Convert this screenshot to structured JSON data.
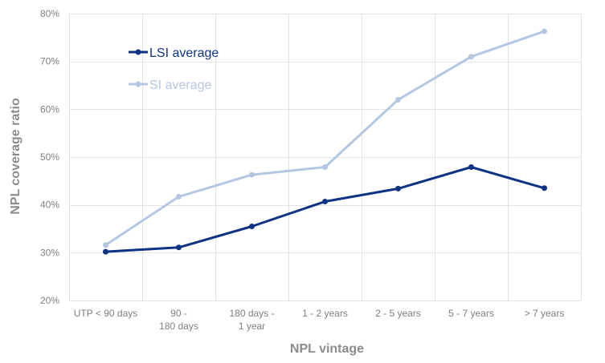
{
  "chart_data": {
    "type": "line",
    "title": "",
    "xlabel": "NPL vintage",
    "ylabel": "NPL coverage ratio",
    "ylim": [
      20,
      80
    ],
    "yticks": [
      20,
      30,
      40,
      50,
      60,
      70,
      80
    ],
    "ytick_labels": [
      "20%",
      "30%",
      "40%",
      "50%",
      "60%",
      "70%",
      "80%"
    ],
    "categories": [
      [
        "UTP < 90 days"
      ],
      [
        "90 -",
        "180 days"
      ],
      [
        "180 days -",
        "1 year"
      ],
      [
        "1 - 2 years"
      ],
      [
        "2 - 5 years"
      ],
      [
        "5 - 7 years"
      ],
      [
        "> 7 years"
      ]
    ],
    "series": [
      {
        "name": "LSI average",
        "color": "#0d3384",
        "values": [
          30.2,
          31.1,
          35.5,
          40.7,
          43.4,
          47.9,
          43.5
        ]
      },
      {
        "name": "SI average",
        "color": "#b4c7e2",
        "values": [
          31.6,
          41.7,
          46.3,
          47.9,
          62.0,
          71.0,
          76.3
        ]
      }
    ],
    "legend_position": "top-left",
    "grid": true
  }
}
